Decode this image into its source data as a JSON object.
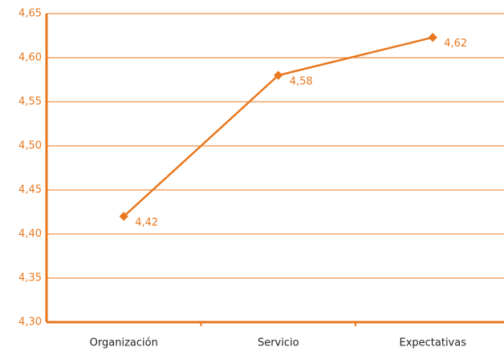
{
  "chart_data": {
    "type": "line",
    "categories": [
      "Organización",
      "Servicio",
      "Expectativas"
    ],
    "series": [
      {
        "color": "#e8771e",
        "values": [
          4.42,
          4.58,
          4.623
        ],
        "value_labels": [
          "4,42",
          "4,58",
          "4,62"
        ]
      }
    ],
    "ylim": [
      4.3,
      4.65
    ],
    "yticks": [
      {
        "value": 4.3,
        "label": "4,30"
      },
      {
        "value": 4.35,
        "label": "4,35"
      },
      {
        "value": 4.4,
        "label": "4,40"
      },
      {
        "value": 4.45,
        "label": "4,45"
      },
      {
        "value": 4.5,
        "label": "4,50"
      },
      {
        "value": 4.55,
        "label": "4,55"
      },
      {
        "value": 4.6,
        "label": "4,60"
      },
      {
        "value": 4.65,
        "label": "4,65"
      }
    ],
    "grid": true
  }
}
